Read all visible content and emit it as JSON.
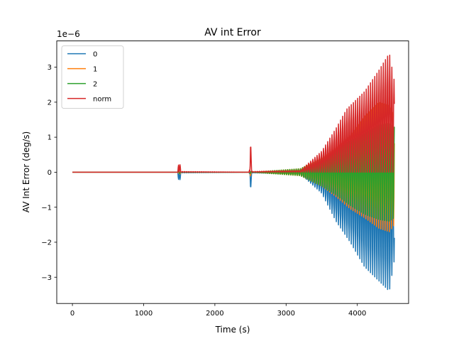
{
  "chart_data": {
    "type": "line",
    "title": "AV int Error",
    "xlabel": "Time (s)",
    "ylabel": "AV Int Error (deg/s)",
    "y_offset_label": "1e−6",
    "xlim": [
      -220,
      4720
    ],
    "ylim": [
      -3.75,
      3.75
    ],
    "x_ticks": [
      0,
      1000,
      2000,
      3000,
      4000
    ],
    "x_tick_labels": [
      "0",
      "1000",
      "2000",
      "3000",
      "4000"
    ],
    "y_ticks": [
      -3,
      -2,
      -1,
      0,
      1,
      2,
      3
    ],
    "y_tick_labels": [
      "−3",
      "−2",
      "−1",
      "0",
      "1",
      "2",
      "3"
    ],
    "grid": false,
    "legend_position": "top-left",
    "series": [
      {
        "name": "0",
        "color": "#1f77b4",
        "envelope": [
          [
            0,
            0.0,
            0.0
          ],
          [
            1480,
            0.0,
            0.0
          ],
          [
            1500,
            0.0,
            -0.55
          ],
          [
            1520,
            0.0,
            -0.02
          ],
          [
            2480,
            0.0,
            0.0
          ],
          [
            2500,
            0.0,
            -0.55
          ],
          [
            2520,
            0.0,
            -0.02
          ],
          [
            3200,
            0.0,
            -0.05
          ],
          [
            3500,
            0.0,
            -0.6
          ],
          [
            3700,
            0.0,
            -1.4
          ],
          [
            3900,
            0.0,
            -2.0
          ],
          [
            4100,
            0.0,
            -2.7
          ],
          [
            4300,
            0.0,
            -3.1
          ],
          [
            4450,
            0.0,
            -3.4
          ],
          [
            4520,
            0.0,
            -2.5
          ]
        ]
      },
      {
        "name": "1",
        "color": "#ff7f0e",
        "envelope": [
          [
            0,
            0.0,
            0.0
          ],
          [
            1480,
            0.0,
            0.0
          ],
          [
            1500,
            0.05,
            -0.1
          ],
          [
            1520,
            0.0,
            0.0
          ],
          [
            2480,
            0.0,
            0.0
          ],
          [
            2500,
            0.05,
            -0.1
          ],
          [
            2520,
            0.0,
            0.0
          ],
          [
            3200,
            0.1,
            -0.1
          ],
          [
            3500,
            0.4,
            -0.4
          ],
          [
            3700,
            0.7,
            -0.7
          ],
          [
            3900,
            1.05,
            -1.05
          ],
          [
            4100,
            1.6,
            -1.3
          ],
          [
            4300,
            2.0,
            -1.6
          ],
          [
            4450,
            1.9,
            -1.7
          ],
          [
            4520,
            1.6,
            -1.5
          ]
        ]
      },
      {
        "name": "2",
        "color": "#2ca02c",
        "envelope": [
          [
            0,
            0.0,
            0.0
          ],
          [
            1480,
            0.0,
            0.0
          ],
          [
            1500,
            0.05,
            -0.05
          ],
          [
            1520,
            0.0,
            0.0
          ],
          [
            2480,
            0.0,
            0.0
          ],
          [
            2500,
            0.05,
            -0.05
          ],
          [
            2520,
            0.0,
            0.0
          ],
          [
            3200,
            0.1,
            -0.1
          ],
          [
            3500,
            0.4,
            -0.4
          ],
          [
            3700,
            0.65,
            -0.65
          ],
          [
            3900,
            0.9,
            -0.95
          ],
          [
            4100,
            1.1,
            -1.2
          ],
          [
            4300,
            1.35,
            -1.35
          ],
          [
            4450,
            1.4,
            -1.4
          ],
          [
            4520,
            1.3,
            -1.3
          ]
        ]
      },
      {
        "name": "norm",
        "color": "#d62728",
        "envelope": [
          [
            0,
            0.0,
            0.0
          ],
          [
            1480,
            0.0,
            0.0
          ],
          [
            1500,
            0.55,
            0.0
          ],
          [
            1520,
            0.02,
            0.0
          ],
          [
            2480,
            0.0,
            0.0
          ],
          [
            2500,
            0.95,
            0.0
          ],
          [
            2520,
            0.02,
            0.0
          ],
          [
            3200,
            0.05,
            0.0
          ],
          [
            3500,
            0.6,
            0.0
          ],
          [
            3700,
            1.25,
            0.0
          ],
          [
            3850,
            1.8,
            0.0
          ],
          [
            4100,
            2.3,
            0.0
          ],
          [
            4300,
            2.9,
            0.0
          ],
          [
            4450,
            3.4,
            0.0
          ],
          [
            4520,
            2.6,
            0.0
          ]
        ]
      }
    ]
  }
}
